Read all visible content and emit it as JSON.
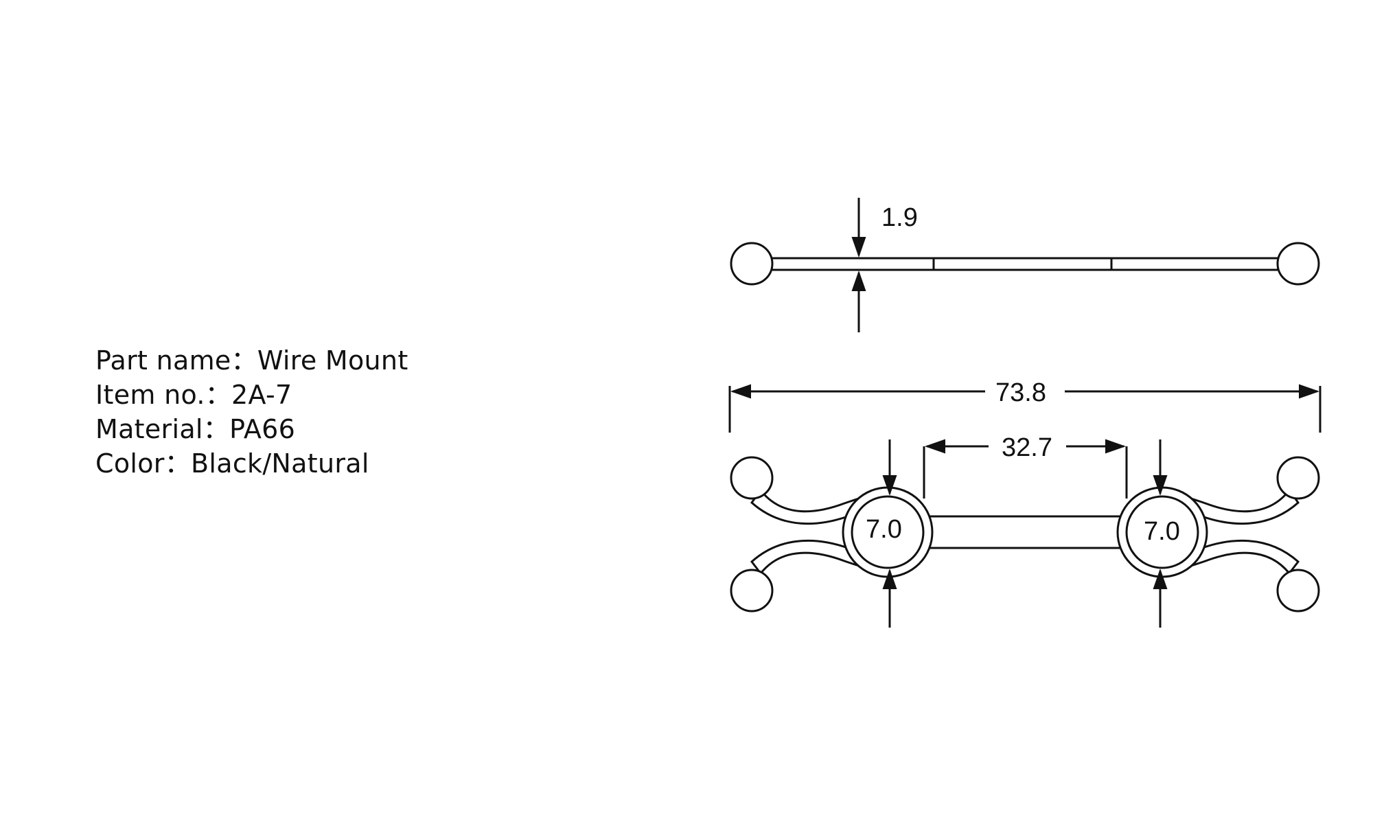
{
  "specs": {
    "part_name_label": "Part name：",
    "part_name_value": "Wire Mount",
    "item_no_label": "Item no.：",
    "item_no_value": "2A-7",
    "material_label": "Material：",
    "material_value": "PA66",
    "color_label": "Color：",
    "color_value": "Black/Natural"
  },
  "dimensions": {
    "thickness": "1.9",
    "overall_length": "73.8",
    "center_spacing": "32.7",
    "left_hole_diameter": "7.0",
    "right_hole_diameter": "7.0"
  }
}
